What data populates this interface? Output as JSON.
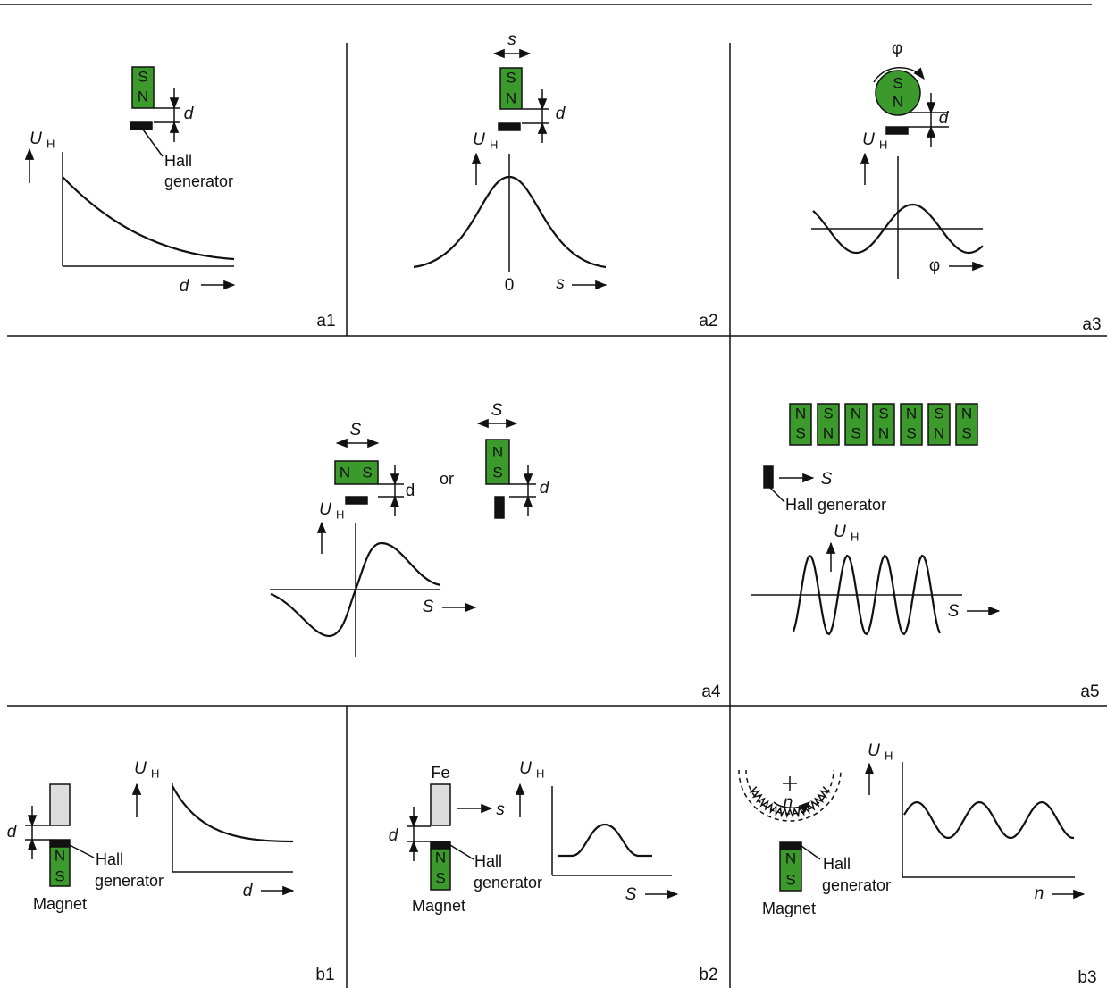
{
  "panels": [
    {
      "id": "a1",
      "magnet": [
        "S",
        "N"
      ],
      "gap": "d",
      "sensor": [
        "Hall",
        "generator"
      ],
      "y_axis": {
        "symbol": "U",
        "sub": "H"
      },
      "x_axis": "d"
    },
    {
      "id": "a2",
      "motion": "s",
      "magnet": [
        "S",
        "N"
      ],
      "gap": "d",
      "y_axis": {
        "symbol": "U",
        "sub": "H"
      },
      "origin": "0",
      "x_axis": "s"
    },
    {
      "id": "a3",
      "rotation": "φ",
      "magnet": [
        "S",
        "N"
      ],
      "gap": "d",
      "y_axis": {
        "symbol": "U",
        "sub": "H"
      },
      "x_axis": "φ"
    },
    {
      "id": "a4",
      "motion_1": "S",
      "magnet_1": [
        "N",
        "S"
      ],
      "gap_1": "d",
      "conjunction": "or",
      "motion_2": "S",
      "magnet_2": [
        "N",
        "S"
      ],
      "gap_2": "d",
      "y_axis": {
        "symbol": "U",
        "sub": "H"
      },
      "x_axis": "S"
    },
    {
      "id": "a5",
      "magnets": [
        [
          "N",
          "S"
        ],
        [
          "S",
          "N"
        ],
        [
          "N",
          "S"
        ],
        [
          "S",
          "N"
        ],
        [
          "N",
          "S"
        ],
        [
          "S",
          "N"
        ],
        [
          "N",
          "S"
        ]
      ],
      "motion": "S",
      "sensor": "Hall generator",
      "y_axis": {
        "symbol": "U",
        "sub": "H"
      },
      "x_axis": "S"
    },
    {
      "id": "b1",
      "gap": "d",
      "magnet": [
        "N",
        "S"
      ],
      "sensor": [
        "Hall",
        "generator"
      ],
      "magnet_label": "Magnet",
      "y_axis": {
        "symbol": "U",
        "sub": "H"
      },
      "x_axis": "d"
    },
    {
      "id": "b2",
      "material": "Fe",
      "motion": "s",
      "gap": "d",
      "magnet": [
        "N",
        "S"
      ],
      "sensor": [
        "Hall",
        "generator"
      ],
      "magnet_label": "Magnet",
      "y_axis": {
        "symbol": "U",
        "sub": "H"
      },
      "x_axis": "S"
    },
    {
      "id": "b3",
      "rotation": "n",
      "magnet": [
        "N",
        "S"
      ],
      "sensor": [
        "Hall",
        "generator"
      ],
      "magnet_label": "Magnet",
      "y_axis": {
        "symbol": "U",
        "sub": "H"
      },
      "x_axis": "n"
    }
  ]
}
